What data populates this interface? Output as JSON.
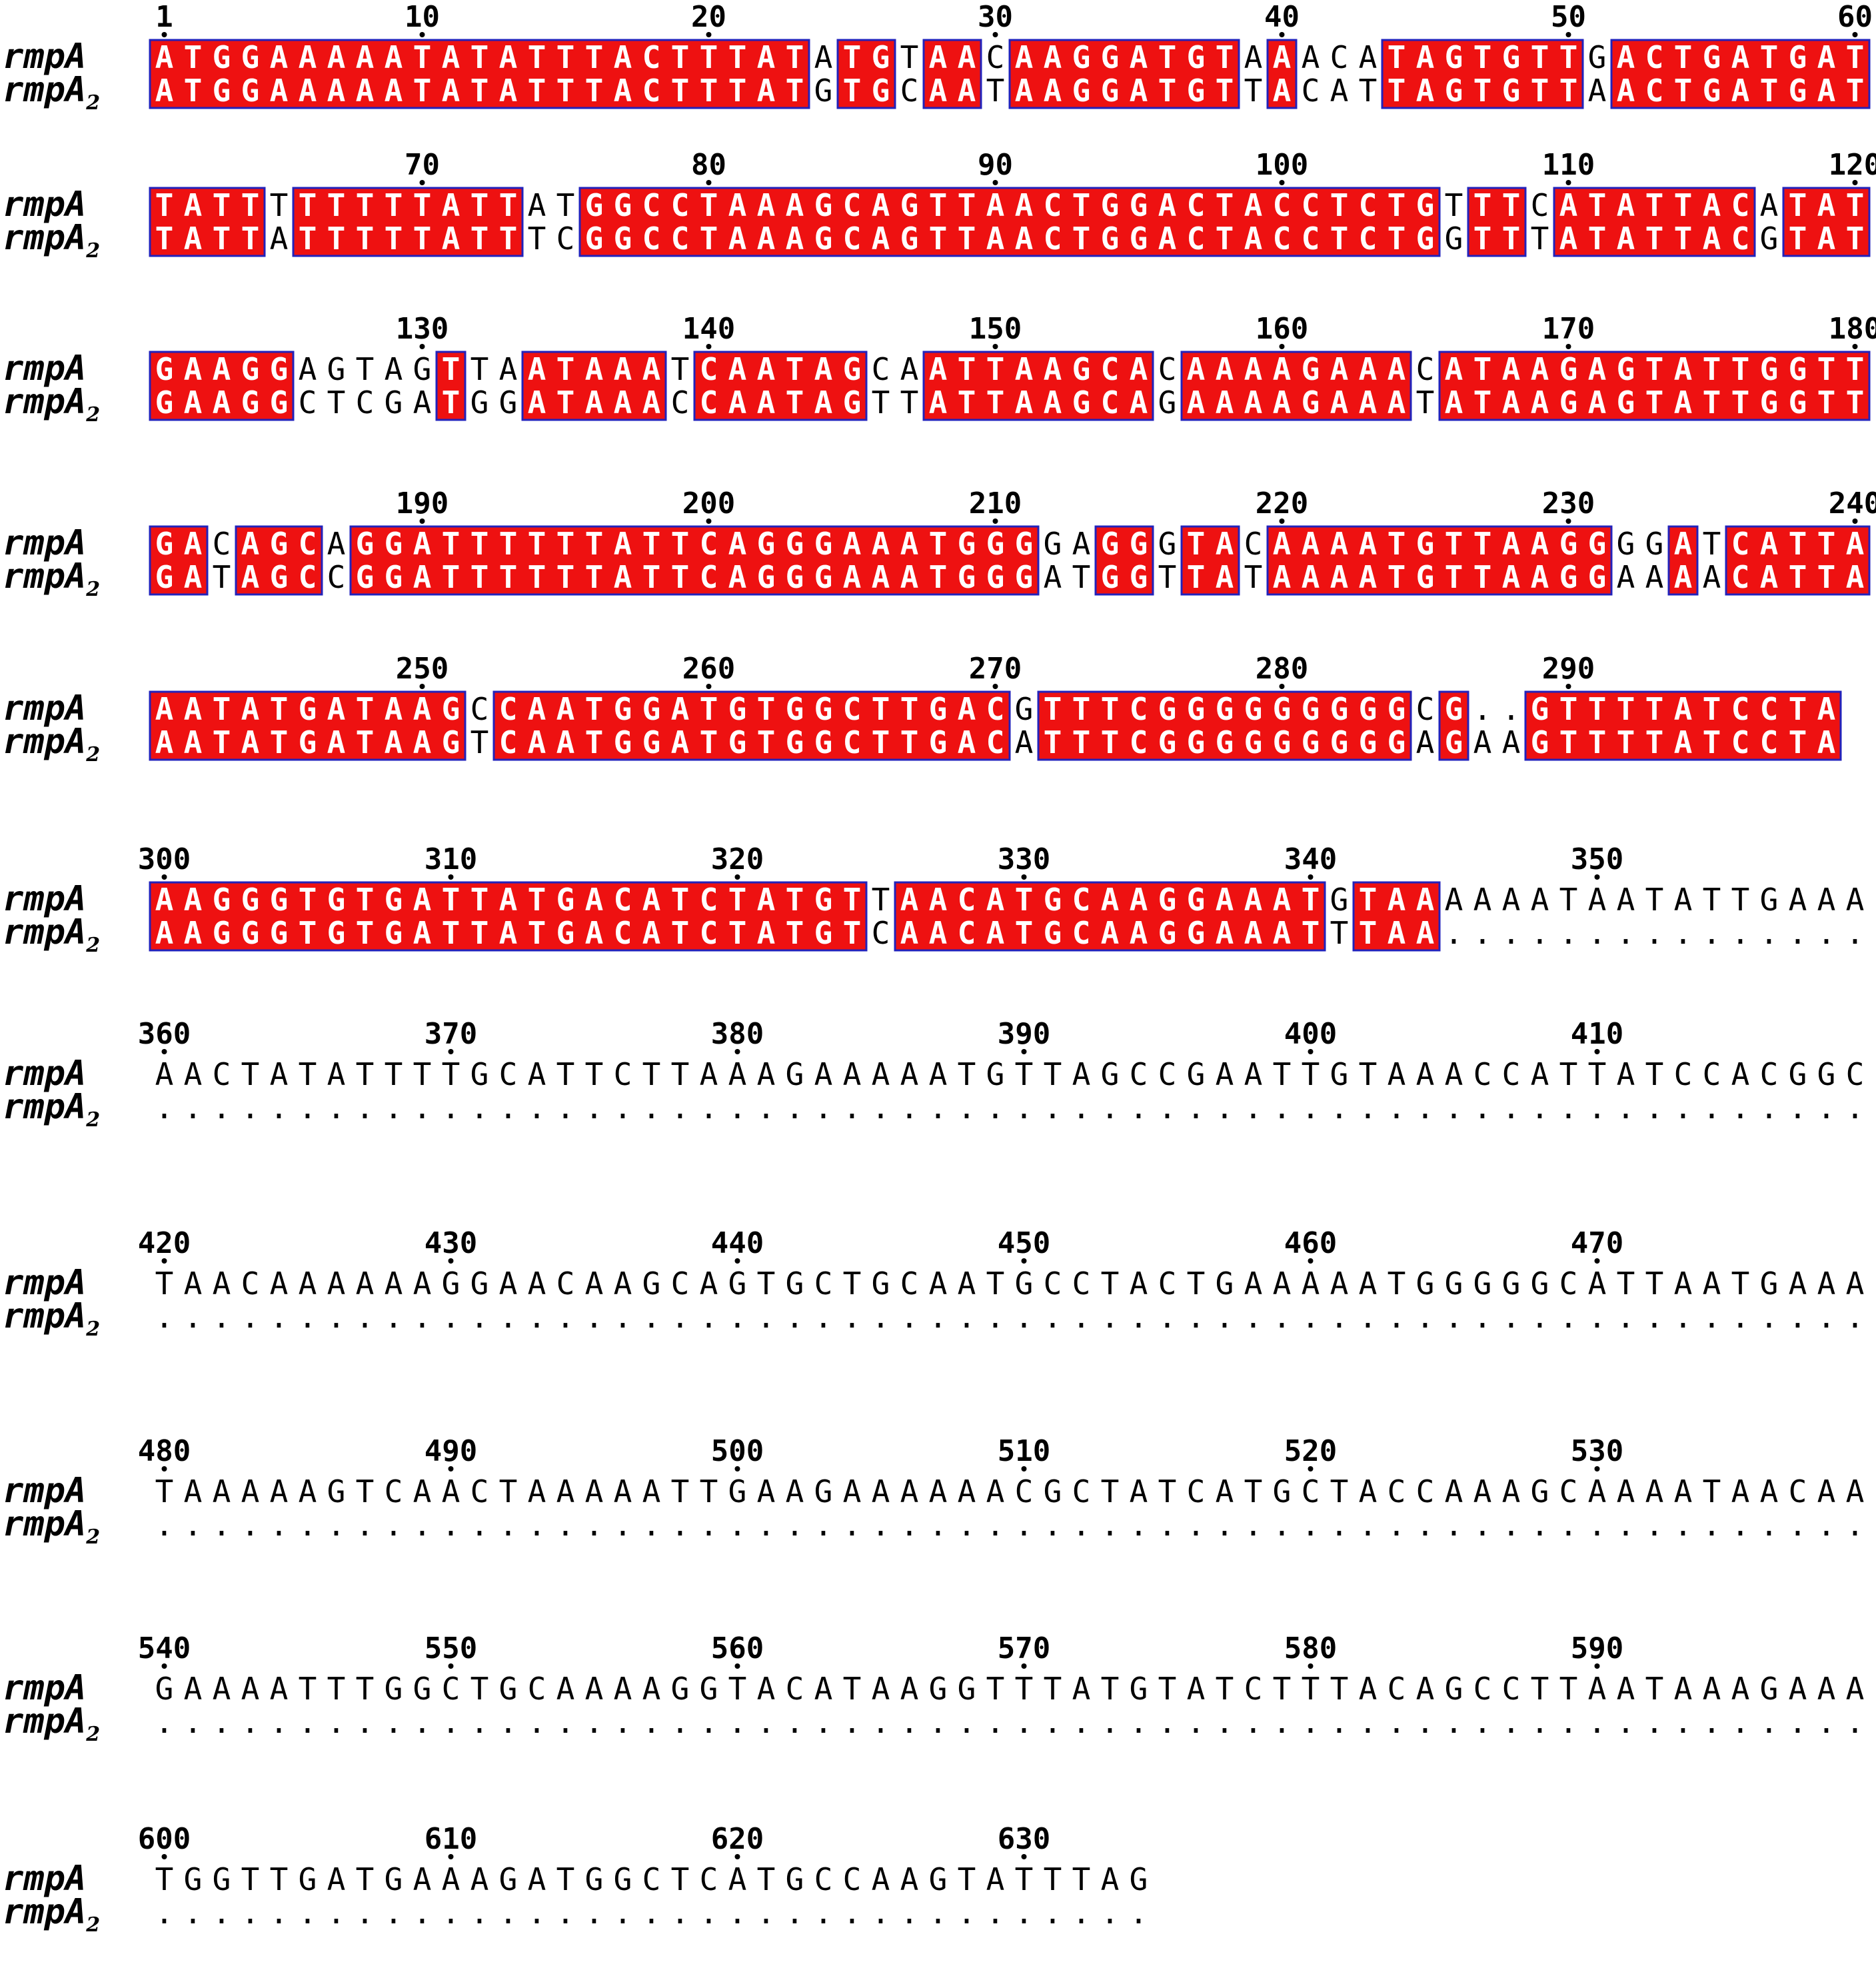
{
  "alignment": {
    "sequence_names": [
      {
        "base": "rmpA",
        "subscript": ""
      },
      {
        "base": "rmpA",
        "subscript": "2"
      }
    ],
    "gap_symbol": ".",
    "block_width": 60,
    "colors": {
      "conserved_fill": "#ee1111",
      "conserved_border": "#2222bb",
      "conserved_text": "#ffffff",
      "plain_text": "#000000"
    },
    "blocks": [
      {
        "start": 1,
        "seq1": "ATGGAAAAATATATTTACTTTATATGTAACAAGGATGTAAACATAGTGTTGACTGATGAT",
        "seq2": "ATGGAAAAATATATTTACTTTATGTGCAATAAGGATGTTACATTAGTGTTAACTGATGAT"
      },
      {
        "start": 61,
        "seq1": "TATTTTTTTTATTATGGCCTAAAGCAGTTAACTGGACTACCTCTGTTTCATATTACATAT",
        "seq2": "TATTATTTTTATTTCGGCCTAAAGCAGTTAACTGGACTACCTCTGGTTTATATTACGTAT"
      },
      {
        "start": 121,
        "seq1": "GAAGGAGTAGTTAATAAATCAATAGCAATTAAGCACAAAAGAAACATAAGAGTATTGGTT",
        "seq2": "GAAGGCTCGATGGATAAACCAATAGTTATTAAGCAGAAAAGAAATATAAGAGTATTGGTT"
      },
      {
        "start": 181,
        "seq1": "GACAGCAGGATTTTTTATTCAGGGAAATGGGGAGGGTACAAAATGTTAAGGGGATCATTA",
        "seq2": "GATAGCCGGATTTTTTATTCAGGGAAATGGGATGGTTATAAAATGTTAAGGAAAACATTA"
      },
      {
        "start": 241,
        "seq1": "AATATGATAAGCCAATGGATGTGGCTTGACGTTTCGGGGGGGGGCG..GTTTTATCCTA",
        "seq2": "AATATGATAAGTCAATGGATGTGGCTTGACATTTCGGGGGGGGGAGAAGTTTTATCCTA"
      },
      {
        "start": 300,
        "seq1": "AAGGGTGTGATTATGACATCTATGTTAACATGCAAGGAAATGTAAAAAATAATATTGAAA",
        "seq2": "AAGGGTGTGATTATGACATCTATGTCAACATGCAAGGAAATTTAA..............."
      },
      {
        "start": 360,
        "seq1": "AACTATATTTTGCATTCTTAAAGAAAAATGTTAGCCGAATTGTAAACCATTATCCACGGC",
        "seq2": "............................................................"
      },
      {
        "start": 420,
        "seq1": "TAACAAAAAAGGAACAAGCAGTGCTGCAATGCCTACTGAAAAATGGGGGCATTAATGAAA",
        "seq2": "............................................................"
      },
      {
        "start": 480,
        "seq1": "TAAAAAGTCAACTAAAAATTGAAGAAAAAACGCTATCATGCTACCAAAGCAAAATAACAA",
        "seq2": "............................................................"
      },
      {
        "start": 540,
        "seq1": "GAAAATTTGGCTGCAAAAGGTACATAAGGTTTATGTATCTTTACAGCCTTAATAAAGAAA",
        "seq2": "............................................................"
      },
      {
        "start": 600,
        "seq1": "TGGTTGATGAAAGATGGCTCATGCCAAGTATTTAG",
        "seq2": "..................................."
      }
    ]
  }
}
